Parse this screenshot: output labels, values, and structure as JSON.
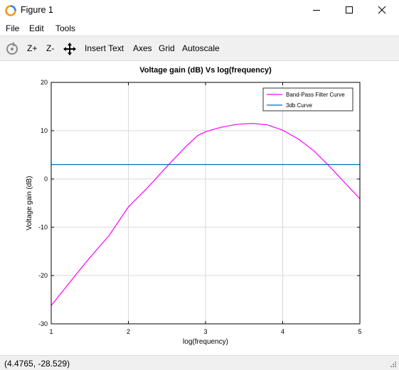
{
  "window": {
    "title": "Figure 1"
  },
  "menu": {
    "file": "File",
    "edit": "Edit",
    "tools": "Tools"
  },
  "toolbar": {
    "zoom_in": "Z+",
    "zoom_out": "Z-",
    "insert_text": "Insert Text",
    "axes": "Axes",
    "grid": "Grid",
    "autoscale": "Autoscale",
    "icons": [
      "rotate-icon",
      "pan-icon"
    ]
  },
  "status": {
    "coords": "(4.4765, -28.529)"
  },
  "chart_data": {
    "type": "line",
    "title": "Voltage gain (dB) Vs log(frequency)",
    "xlabel": "log(frequency)",
    "ylabel": "Voltage gain (dB)",
    "xlim": [
      1,
      5
    ],
    "ylim": [
      -30,
      20
    ],
    "xticks": [
      "1",
      "2",
      "3",
      "4",
      "5"
    ],
    "yticks": [
      "20",
      "10",
      "0",
      "-10",
      "-20",
      "-30"
    ],
    "grid": true,
    "legend_position": "top-right",
    "series": [
      {
        "name": "Band-Pass Filter Curve",
        "color": "#ff00ff",
        "x": [
          1.0,
          1.25,
          1.5,
          1.75,
          2.0,
          2.25,
          2.5,
          2.75,
          2.9,
          3.0,
          3.2,
          3.4,
          3.6,
          3.8,
          4.0,
          4.2,
          4.4,
          4.6,
          4.8,
          5.0
        ],
        "y": [
          -26.2,
          -21.2,
          -16.3,
          -11.7,
          -5.8,
          -1.8,
          2.6,
          6.8,
          9.0,
          9.8,
          10.7,
          11.3,
          11.5,
          11.2,
          10.1,
          8.3,
          5.9,
          2.7,
          -0.7,
          -4.1
        ]
      },
      {
        "name": "3db Curve",
        "color": "#0072bd",
        "x": [
          1.0,
          5.0
        ],
        "y": [
          3.0,
          3.0
        ]
      }
    ]
  }
}
